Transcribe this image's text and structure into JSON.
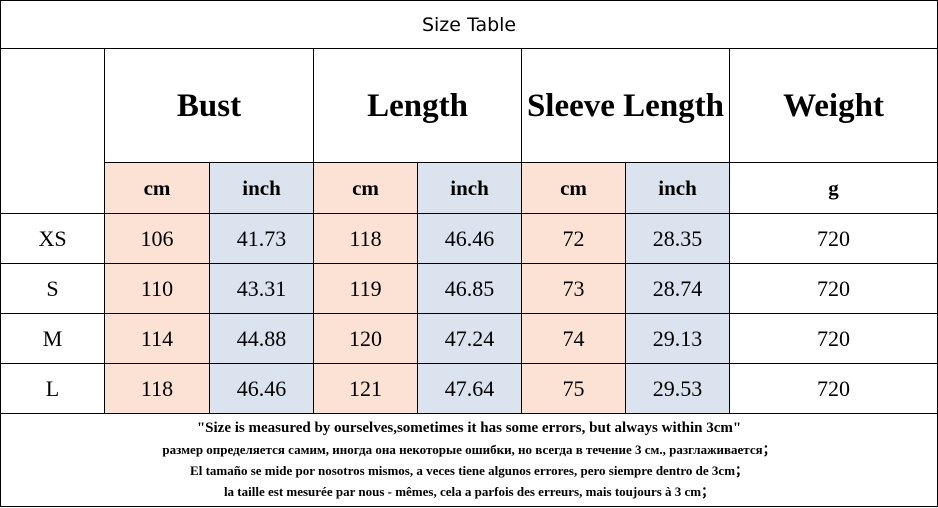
{
  "title": "Size Table",
  "headers": [
    "Bust",
    "Length",
    "Sleeve Length",
    "Weight"
  ],
  "units": [
    "cm",
    "inch",
    "cm",
    "inch",
    "cm",
    "inch",
    "g"
  ],
  "rows": [
    [
      "XS",
      106,
      41.73,
      118,
      46.46,
      72,
      28.35,
      720
    ],
    [
      "S",
      110,
      43.31,
      119,
      46.85,
      73,
      28.74,
      720
    ],
    [
      "M",
      114,
      44.88,
      120,
      47.24,
      74,
      29.13,
      720
    ],
    [
      "L",
      118,
      46.46,
      121,
      47.64,
      75,
      29.53,
      720
    ]
  ],
  "notes": [
    "\"Size is measured by ourselves,sometimes it has some errors, but always within 3cm\"",
    "размер определяется самим, иногда она некоторые ошибки, но всегда в течение 3 см., разглаживается；",
    "El tamaño se mide por nosotros mismos, a veces tiene algunos errores, pero siempre dentro de 3cm；",
    "la taille est mesurée par nous - mêmes, cela a parfois des erreurs, mais toujours à 3 cm；"
  ]
}
